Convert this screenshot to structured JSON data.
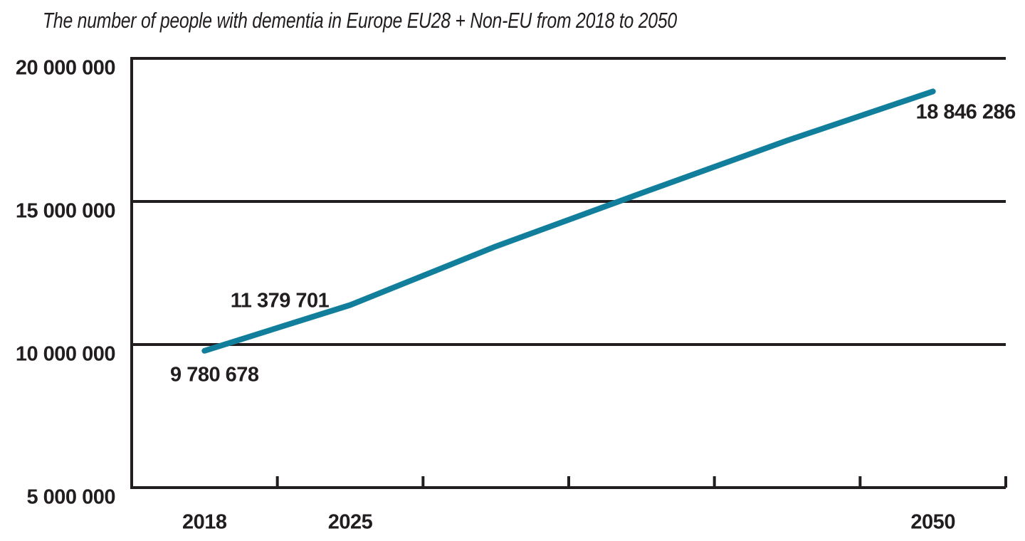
{
  "page": {
    "background": "#ffffff"
  },
  "chart_data": {
    "type": "line",
    "title": "The number of people with dementia in Europe EU28 + Non-EU from 2018 to 2050",
    "x_axis": {
      "num_bins": 6,
      "labeled_bins": [
        1,
        2,
        6
      ],
      "tick_labels": [
        "2018",
        "2025",
        "2050"
      ],
      "ticks_point_inward": true
    },
    "y_axis": {
      "min": 5000000,
      "max": 20000000,
      "tick_values": [
        5000000,
        10000000,
        15000000,
        20000000
      ],
      "tick_labels": [
        "5 000 000",
        "10 000 000",
        "15 000 000",
        "20 000 000"
      ],
      "gridlines": true
    },
    "series": [
      {
        "color": "#117f9b",
        "bin_values": [
          9780678,
          11379701,
          13430000,
          15290000,
          17130000,
          18846286
        ],
        "estimated_unlabeled_bins": [
          3,
          4,
          5
        ]
      }
    ],
    "point_labels": [
      {
        "text": "9 780 678",
        "value": 9780678,
        "bin": 1,
        "placement": "below"
      },
      {
        "text": "11 379 701",
        "value": 11379701,
        "bin": 2,
        "placement": "above-left"
      },
      {
        "text": "18 846 286",
        "value": 18846286,
        "bin": 6,
        "placement": "below-right"
      }
    ],
    "grid": "horizontal",
    "legend": "none",
    "colors": {
      "axis": "#221e1f",
      "text": "#221e1f",
      "line": "#117f9b"
    }
  }
}
